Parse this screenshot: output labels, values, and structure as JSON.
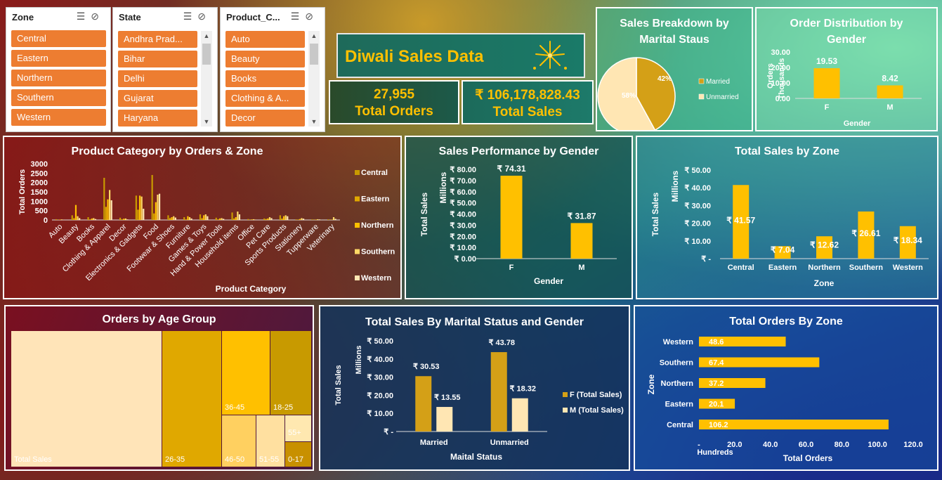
{
  "slicers": {
    "zone": {
      "header": "Zone",
      "items": [
        "Central",
        "Eastern",
        "Northern",
        "Southern",
        "Western"
      ]
    },
    "state": {
      "header": "State",
      "items": [
        "Andhra Prad...",
        "Bihar",
        "Delhi",
        "Gujarat",
        "Haryana"
      ]
    },
    "product": {
      "header": "Product_C...",
      "items": [
        "Auto",
        "Beauty",
        "Books",
        "Clothing & A...",
        "Decor"
      ]
    }
  },
  "banner": {
    "title": "Diwali Sales Data"
  },
  "kpis": {
    "orders": {
      "value": "27,955",
      "label": "Total Orders"
    },
    "sales": {
      "value": "₹ 106,178,828.43",
      "label": "Total Sales"
    }
  },
  "colors": {
    "gold": "#ffc000",
    "darkgold": "#d4a017",
    "light": "#ffd966",
    "cream": "#ffe6b3",
    "accent": "#ed7d31"
  },
  "chart_data": [
    {
      "id": "marital_pie",
      "type": "pie",
      "title": "Sales Breakdown by Marital Staus",
      "categories": [
        "Married",
        "Unmarried"
      ],
      "values": [
        42,
        58
      ],
      "labels": [
        "42%",
        "58%"
      ],
      "legend": "right"
    },
    {
      "id": "gender_orders",
      "type": "bar",
      "title": "Order Distribution by Gender",
      "categories": [
        "F",
        "M"
      ],
      "values": [
        19.53,
        8.42
      ],
      "value_labels": [
        "19.53",
        "8.42"
      ],
      "xlabel": "Gender",
      "ylabel": "Orders",
      "unit_label": "Thousands",
      "ylim": [
        0,
        30
      ],
      "ticks": [
        "0.00",
        "10.00",
        "20.00",
        "30.00"
      ]
    },
    {
      "id": "category_zone",
      "type": "bar",
      "title": "Product Category by Orders & Zone",
      "xlabel": "Product Category",
      "ylabel": "Total Orders",
      "ylim": [
        0,
        3000
      ],
      "ticks": [
        "0",
        "500",
        "1000",
        "1500",
        "2000",
        "2500",
        "3000"
      ],
      "legend": "right",
      "categories": [
        "Auto",
        "Beauty",
        "Books",
        "Clothing & Apparel",
        "Decor",
        "Electronics & Gadgets",
        "Food",
        "Footwear & Shoes",
        "Furniture",
        "Games & Toys",
        "Hand & Power Tools",
        "Household items",
        "Office",
        "Pet Care",
        "Sports Products",
        "Stationery",
        "Tupperware",
        "Veterinary"
      ],
      "series": [
        {
          "name": "Central",
          "values": [
            40,
            250,
            150,
            2250,
            120,
            1300,
            2400,
            250,
            150,
            300,
            120,
            400,
            50,
            80,
            250,
            30,
            30,
            30
          ]
        },
        {
          "name": "Eastern",
          "values": [
            10,
            100,
            30,
            700,
            30,
            550,
            350,
            100,
            30,
            100,
            30,
            80,
            10,
            50,
            80,
            20,
            10,
            10
          ]
        },
        {
          "name": "Northern",
          "values": [
            20,
            800,
            80,
            1100,
            70,
            1300,
            950,
            150,
            200,
            250,
            80,
            150,
            30,
            80,
            200,
            50,
            20,
            20
          ]
        },
        {
          "name": "Southern",
          "values": [
            30,
            200,
            100,
            1600,
            80,
            1250,
            1350,
            200,
            150,
            300,
            100,
            450,
            40,
            150,
            250,
            100,
            40,
            150
          ]
        },
        {
          "name": "Western",
          "values": [
            15,
            100,
            50,
            1050,
            30,
            600,
            1400,
            130,
            80,
            200,
            60,
            300,
            20,
            100,
            200,
            70,
            30,
            60
          ]
        }
      ]
    },
    {
      "id": "gender_sales",
      "type": "bar",
      "title": "Sales Performance by Gender",
      "categories": [
        "F",
        "M"
      ],
      "values": [
        74.31,
        31.87
      ],
      "value_labels": [
        "₹ 74.31",
        "₹ 31.87"
      ],
      "xlabel": "Gender",
      "ylabel": "Total Sales",
      "unit_label": "Millions",
      "ylim": [
        0,
        80
      ],
      "ticks": [
        "₹ 0.00",
        "₹ 10.00",
        "₹ 20.00",
        "₹ 30.00",
        "₹ 40.00",
        "₹ 50.00",
        "₹ 60.00",
        "₹ 70.00",
        "₹ 80.00"
      ]
    },
    {
      "id": "zone_sales",
      "type": "bar",
      "title": "Total Sales by Zone",
      "categories": [
        "Central",
        "Eastern",
        "Northern",
        "Southern",
        "Western"
      ],
      "values": [
        41.57,
        7.04,
        12.62,
        26.61,
        18.34
      ],
      "value_labels": [
        "₹ 41.57",
        "₹ 7.04",
        "₹ 12.62",
        "₹ 26.61",
        "₹ 18.34"
      ],
      "xlabel": "Zone",
      "ylabel": "Total Sales",
      "unit_label": "Millions",
      "ylim": [
        0,
        50
      ],
      "ticks": [
        "₹ -",
        "₹ 10.00",
        "₹ 20.00",
        "₹ 30.00",
        "₹ 40.00",
        "₹ 50.00"
      ]
    },
    {
      "id": "age_treemap",
      "type": "treemap",
      "title": "Orders by Age Group",
      "categories": [
        "Total Sales",
        "26-35",
        "36-45",
        "18-25",
        "46-50",
        "51-55",
        "55+",
        "0-17"
      ]
    },
    {
      "id": "marital_gender_sales",
      "type": "bar",
      "title": "Total Sales By Marital Status and Gender",
      "categories": [
        "Married",
        "Unmarried"
      ],
      "xlabel": "Maital Status",
      "ylabel": "Total Sales",
      "unit_label": "Millions",
      "ylim": [
        0,
        50
      ],
      "ticks": [
        "₹ -",
        "₹ 10.00",
        "₹ 20.00",
        "₹ 30.00",
        "₹ 40.00",
        "₹ 50.00"
      ],
      "legend": "right",
      "series": [
        {
          "name": "F (Total Sales)",
          "values": [
            30.53,
            43.78
          ],
          "value_labels": [
            "₹ 30.53",
            "₹ 43.78"
          ]
        },
        {
          "name": "M (Total Sales)",
          "values": [
            13.55,
            18.32
          ],
          "value_labels": [
            "₹ 13.55",
            "₹ 18.32"
          ]
        }
      ]
    },
    {
      "id": "zone_orders",
      "type": "bar",
      "orientation": "horizontal",
      "title": "Total Orders By Zone",
      "categories": [
        "Western",
        "Southern",
        "Northern",
        "Eastern",
        "Central"
      ],
      "values": [
        48.6,
        67.4,
        37.2,
        20.1,
        106.2
      ],
      "value_labels": [
        "48.6",
        "67.4",
        "37.2",
        "20.1",
        "106.2"
      ],
      "xlabel": "Total Orders",
      "ylabel": "Zone",
      "unit_label": "Hundreds",
      "xlim": [
        0,
        120
      ],
      "ticks": [
        "-",
        "20.0",
        "40.0",
        "60.0",
        "80.0",
        "100.0",
        "120.0"
      ]
    }
  ]
}
